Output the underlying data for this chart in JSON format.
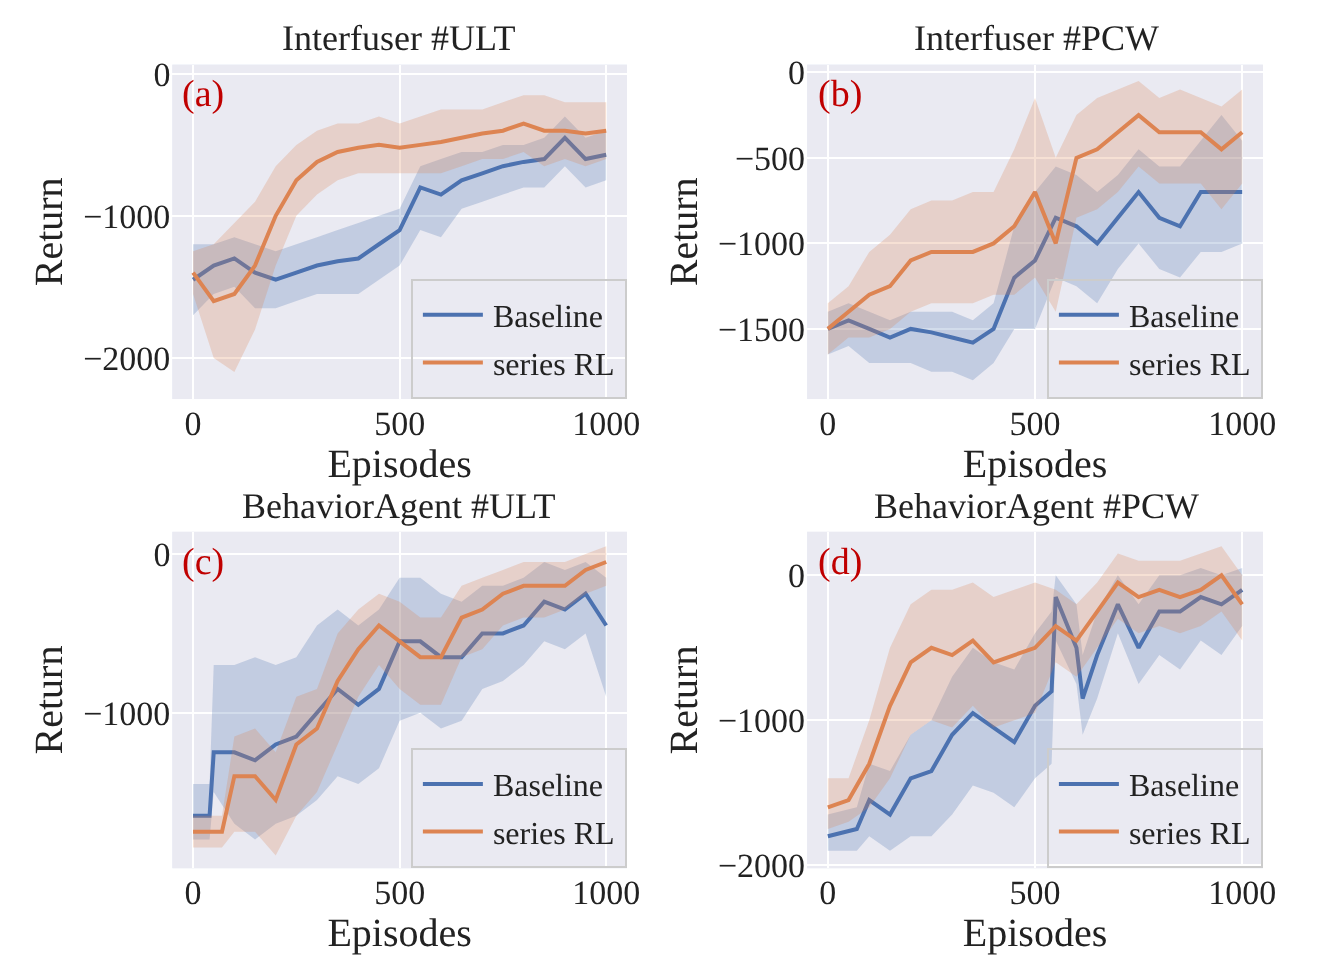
{
  "chart_data": [
    {
      "type": "line",
      "title": "Interfuser #ULT",
      "xlabel": "Episodes",
      "ylabel": "Return",
      "annotations": [
        "(a)"
      ],
      "xlim": [
        -50,
        1050
      ],
      "xticks": [
        0,
        500,
        1000
      ],
      "ylim": [
        -2290,
        65
      ],
      "yticks": [
        {
          "value": -2000,
          "label": "−2000"
        },
        {
          "value": -1000,
          "label": "−1000"
        },
        0
      ],
      "grid": true,
      "legend": "bottom right",
      "series": [
        {
          "name": "Baseline",
          "color": "#4c72b0",
          "x": [
            0,
            50,
            100,
            150,
            200,
            250,
            300,
            350,
            400,
            450,
            500,
            550,
            600,
            650,
            700,
            750,
            800,
            850,
            900,
            950,
            1000
          ],
          "values": [
            -1450,
            -1350,
            -1300,
            -1400,
            -1450,
            -1400,
            -1350,
            -1320,
            -1300,
            -1200,
            -1100,
            -800,
            -850,
            -750,
            -700,
            -650,
            -620,
            -600,
            -450,
            -600,
            -570
          ],
          "upper": [
            -1200,
            -1200,
            -1150,
            -1200,
            -1250,
            -1200,
            -1150,
            -1100,
            -1050,
            -1000,
            -950,
            -650,
            -600,
            -550,
            -550,
            -500,
            -500,
            -450,
            -300,
            -450,
            -400
          ],
          "lower": [
            -1700,
            -1550,
            -1500,
            -1650,
            -1650,
            -1600,
            -1550,
            -1550,
            -1550,
            -1450,
            -1350,
            -1100,
            -1150,
            -950,
            -900,
            -850,
            -800,
            -800,
            -650,
            -800,
            -750
          ]
        },
        {
          "name": "series RL",
          "color": "#dd8452",
          "x": [
            0,
            50,
            100,
            150,
            200,
            250,
            300,
            350,
            400,
            450,
            500,
            550,
            600,
            650,
            700,
            750,
            800,
            850,
            900,
            950,
            1000
          ],
          "values": [
            -1400,
            -1600,
            -1550,
            -1350,
            -1000,
            -750,
            -620,
            -550,
            -520,
            -500,
            -520,
            -500,
            -480,
            -450,
            -420,
            -400,
            -350,
            -400,
            -400,
            -420,
            -400
          ],
          "upper": [
            -1250,
            -1200,
            -1050,
            -900,
            -650,
            -500,
            -400,
            -350,
            -350,
            -300,
            -350,
            -300,
            -250,
            -250,
            -250,
            -200,
            -150,
            -150,
            -200,
            -200,
            -200
          ],
          "lower": [
            -1550,
            -2000,
            -2100,
            -1800,
            -1350,
            -1000,
            -850,
            -750,
            -700,
            -700,
            -700,
            -700,
            -700,
            -650,
            -600,
            -600,
            -550,
            -650,
            -600,
            -650,
            -600
          ]
        }
      ]
    },
    {
      "type": "line",
      "title": "Interfuser #PCW",
      "xlabel": "Episodes",
      "ylabel": "Return",
      "annotations": [
        "(b)"
      ],
      "xlim": [
        -50,
        1050
      ],
      "xticks": [
        0,
        500,
        1000
      ],
      "ylim": [
        -1910,
        45
      ],
      "yticks": [
        {
          "value": -1500,
          "label": "−1500"
        },
        {
          "value": -1000,
          "label": "−1000"
        },
        {
          "value": -500,
          "label": "−500"
        },
        0
      ],
      "grid": true,
      "legend": "bottom right",
      "series": [
        {
          "name": "Baseline",
          "color": "#4c72b0",
          "x": [
            0,
            50,
            100,
            150,
            200,
            250,
            300,
            350,
            400,
            450,
            500,
            550,
            600,
            650,
            700,
            750,
            800,
            850,
            900,
            950,
            1000
          ],
          "values": [
            -1500,
            -1450,
            -1500,
            -1550,
            -1500,
            -1520,
            -1550,
            -1580,
            -1500,
            -1200,
            -1100,
            -850,
            -900,
            -1000,
            -850,
            -700,
            -850,
            -900,
            -700,
            -700,
            -700
          ],
          "upper": [
            -1400,
            -1350,
            -1400,
            -1450,
            -1400,
            -1400,
            -1400,
            -1450,
            -1350,
            -900,
            -700,
            -550,
            -600,
            -700,
            -600,
            -450,
            -550,
            -550,
            -400,
            -250,
            -400
          ],
          "lower": [
            -1650,
            -1600,
            -1700,
            -1700,
            -1700,
            -1750,
            -1750,
            -1800,
            -1700,
            -1500,
            -1500,
            -1200,
            -1250,
            -1350,
            -1150,
            -1000,
            -1150,
            -1200,
            -1050,
            -1050,
            -1000
          ]
        },
        {
          "name": "series RL",
          "color": "#dd8452",
          "x": [
            0,
            50,
            100,
            150,
            200,
            250,
            300,
            350,
            400,
            450,
            500,
            550,
            600,
            650,
            700,
            750,
            800,
            850,
            900,
            950,
            1000
          ],
          "values": [
            -1500,
            -1400,
            -1300,
            -1250,
            -1100,
            -1050,
            -1050,
            -1050,
            -1000,
            -900,
            -700,
            -1000,
            -500,
            -450,
            -350,
            -250,
            -350,
            -350,
            -350,
            -450,
            -350
          ],
          "upper": [
            -1350,
            -1250,
            -1050,
            -950,
            -800,
            -750,
            -750,
            -700,
            -700,
            -450,
            -150,
            -500,
            -250,
            -150,
            -100,
            -50,
            -150,
            -100,
            -150,
            -200,
            -100
          ],
          "lower": [
            -1650,
            -1550,
            -1550,
            -1500,
            -1400,
            -1350,
            -1350,
            -1350,
            -1300,
            -1300,
            -1200,
            -1400,
            -850,
            -800,
            -700,
            -550,
            -650,
            -650,
            -650,
            -800,
            -650
          ]
        }
      ]
    },
    {
      "type": "line",
      "title": "BehaviorAgent #ULT",
      "xlabel": "Episodes",
      "ylabel": "Return",
      "annotations": [
        "(c)"
      ],
      "xlim": [
        -50,
        1050
      ],
      "xticks": [
        0,
        500,
        1000
      ],
      "ylim": [
        -1980,
        140
      ],
      "yticks": [
        {
          "value": -1000,
          "label": "−1000"
        },
        0
      ],
      "grid": true,
      "legend": "bottom right",
      "series": [
        {
          "name": "Baseline",
          "color": "#4c72b0",
          "x": [
            0,
            40,
            50,
            100,
            150,
            200,
            250,
            300,
            350,
            400,
            450,
            500,
            550,
            600,
            650,
            700,
            750,
            800,
            850,
            900,
            950,
            1000
          ],
          "values": [
            -1650,
            -1650,
            -1250,
            -1250,
            -1300,
            -1200,
            -1150,
            -1000,
            -850,
            -950,
            -850,
            -550,
            -550,
            -650,
            -650,
            -500,
            -500,
            -450,
            -300,
            -350,
            -250,
            -450
          ],
          "upper": [
            -1450,
            -1450,
            -700,
            -700,
            -650,
            -700,
            -650,
            -450,
            -350,
            -450,
            -350,
            -150,
            -150,
            -250,
            -300,
            -200,
            -200,
            -150,
            -50,
            -100,
            -50,
            -150
          ],
          "lower": [
            -1800,
            -1800,
            -1500,
            -1700,
            -1800,
            -1700,
            -1650,
            -1550,
            -1400,
            -1450,
            -1350,
            -1050,
            -1000,
            -1100,
            -1050,
            -850,
            -800,
            -700,
            -550,
            -600,
            -500,
            -900
          ]
        },
        {
          "name": "series RL",
          "color": "#dd8452",
          "x": [
            0,
            70,
            100,
            150,
            200,
            250,
            300,
            350,
            400,
            450,
            500,
            550,
            600,
            650,
            700,
            750,
            800,
            850,
            900,
            950,
            1000
          ],
          "values": [
            -1750,
            -1750,
            -1400,
            -1400,
            -1550,
            -1200,
            -1100,
            -800,
            -600,
            -450,
            -550,
            -650,
            -650,
            -400,
            -350,
            -250,
            -200,
            -200,
            -200,
            -100,
            -50
          ],
          "upper": [
            -1650,
            -1650,
            -1150,
            -1100,
            -1250,
            -900,
            -850,
            -500,
            -350,
            -250,
            -300,
            -400,
            -400,
            -200,
            -150,
            -100,
            -50,
            -50,
            -50,
            0,
            50
          ],
          "lower": [
            -1850,
            -1850,
            -1750,
            -1750,
            -1900,
            -1650,
            -1500,
            -1200,
            -900,
            -700,
            -850,
            -950,
            -950,
            -650,
            -600,
            -450,
            -400,
            -400,
            -350,
            -250,
            -200
          ]
        }
      ]
    },
    {
      "type": "line",
      "title": "BehaviorAgent #PCW",
      "xlabel": "Episodes",
      "ylabel": "Return",
      "annotations": [
        "(d)"
      ],
      "xlim": [
        -50,
        1050
      ],
      "xticks": [
        0,
        500,
        1000
      ],
      "ylim": [
        -2020,
        300
      ],
      "yticks": [
        {
          "value": -2000,
          "label": "−2000"
        },
        {
          "value": -1000,
          "label": "−1000"
        },
        0
      ],
      "grid": true,
      "legend": "bottom right",
      "series": [
        {
          "name": "Baseline",
          "color": "#4c72b0",
          "x": [
            0,
            70,
            100,
            150,
            200,
            250,
            300,
            350,
            400,
            450,
            500,
            540,
            550,
            600,
            615,
            650,
            700,
            750,
            800,
            850,
            900,
            950,
            1000
          ],
          "values": [
            -1800,
            -1750,
            -1550,
            -1650,
            -1400,
            -1350,
            -1100,
            -950,
            -1050,
            -1150,
            -900,
            -800,
            -150,
            -500,
            -850,
            -550,
            -200,
            -500,
            -250,
            -250,
            -150,
            -200,
            -100
          ],
          "upper": [
            -1650,
            -1600,
            -1300,
            -1350,
            -1100,
            -1000,
            -700,
            -500,
            -600,
            -650,
            -400,
            -250,
            0,
            -200,
            -550,
            -250,
            0,
            -200,
            0,
            0,
            50,
            0,
            50
          ],
          "lower": [
            -1900,
            -1900,
            -1800,
            -1900,
            -1800,
            -1800,
            -1650,
            -1450,
            -1500,
            -1600,
            -1400,
            -1300,
            -450,
            -750,
            -1100,
            -850,
            -400,
            -750,
            -550,
            -650,
            -450,
            -550,
            -350
          ]
        },
        {
          "name": "series RL",
          "color": "#dd8452",
          "x": [
            0,
            50,
            100,
            150,
            200,
            250,
            300,
            350,
            400,
            450,
            500,
            550,
            600,
            650,
            700,
            750,
            800,
            850,
            900,
            950,
            1000
          ],
          "values": [
            -1600,
            -1550,
            -1300,
            -900,
            -600,
            -500,
            -550,
            -450,
            -600,
            -550,
            -500,
            -350,
            -450,
            -250,
            -50,
            -150,
            -100,
            -150,
            -100,
            0,
            -200
          ],
          "upper": [
            -1400,
            -1400,
            -1000,
            -500,
            -200,
            -100,
            -100,
            -50,
            -150,
            -100,
            -50,
            -100,
            -200,
            -50,
            150,
            100,
            100,
            100,
            150,
            200,
            0
          ],
          "lower": [
            -1750,
            -1700,
            -1600,
            -1400,
            -1100,
            -1000,
            -1050,
            -900,
            -1050,
            -1000,
            -950,
            -600,
            -700,
            -500,
            -300,
            -400,
            -350,
            -400,
            -350,
            -250,
            -450
          ]
        }
      ]
    }
  ]
}
